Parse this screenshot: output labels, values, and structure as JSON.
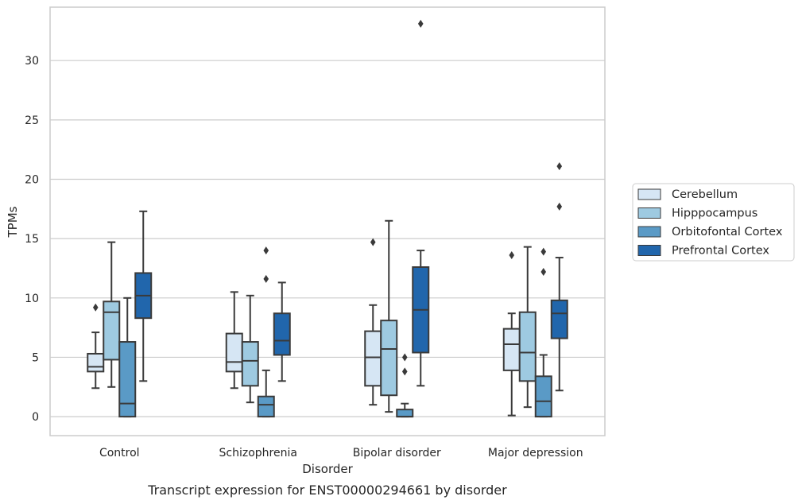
{
  "chart_data": {
    "type": "boxplot",
    "title": "Transcript expression for ENST00000294661 by disorder",
    "xlabel": "Disorder",
    "ylabel": "TPMs",
    "ylim": [
      -1.6,
      34.5
    ],
    "yticks": [
      "0",
      "5",
      "10",
      "15",
      "20",
      "25",
      "30"
    ],
    "grid": true,
    "legend_position": "right",
    "categories": [
      "Control",
      "Schizophrenia",
      "Bipolar disorder",
      "Major depression"
    ],
    "series": [
      {
        "name": "Cerebellum",
        "color": "#d6e6f4",
        "boxes": [
          {
            "q1": 3.8,
            "median": 4.2,
            "q3": 5.3,
            "whisker_low": 2.4,
            "whisker_high": 7.1,
            "outliers": [
              9.2
            ]
          },
          {
            "q1": 3.8,
            "median": 4.6,
            "q3": 7.0,
            "whisker_low": 2.4,
            "whisker_high": 10.5,
            "outliers": []
          },
          {
            "q1": 2.6,
            "median": 5.0,
            "q3": 7.2,
            "whisker_low": 1.0,
            "whisker_high": 9.4,
            "outliers": [
              14.7
            ]
          },
          {
            "q1": 3.9,
            "median": 6.1,
            "q3": 7.4,
            "whisker_low": 0.1,
            "whisker_high": 8.7,
            "outliers": [
              13.6
            ]
          }
        ]
      },
      {
        "name": "Hipppocampus",
        "color": "#9ecae1",
        "boxes": [
          {
            "q1": 4.8,
            "median": 8.8,
            "q3": 9.7,
            "whisker_low": 2.5,
            "whisker_high": 14.7,
            "outliers": []
          },
          {
            "q1": 2.6,
            "median": 4.7,
            "q3": 6.3,
            "whisker_low": 1.2,
            "whisker_high": 10.2,
            "outliers": []
          },
          {
            "q1": 1.8,
            "median": 5.7,
            "q3": 8.1,
            "whisker_low": 0.4,
            "whisker_high": 16.5,
            "outliers": []
          },
          {
            "q1": 3.0,
            "median": 5.4,
            "q3": 8.8,
            "whisker_low": 0.8,
            "whisker_high": 14.3,
            "outliers": []
          }
        ]
      },
      {
        "name": "Orbitofontal Cortex",
        "color": "#5a9ac6",
        "boxes": [
          {
            "q1": 0.0,
            "median": 1.1,
            "q3": 6.3,
            "whisker_low": 0.0,
            "whisker_high": 10.0,
            "outliers": []
          },
          {
            "q1": 0.0,
            "median": 1.0,
            "q3": 1.7,
            "whisker_low": 0.0,
            "whisker_high": 3.9,
            "outliers": [
              11.6,
              14.0
            ]
          },
          {
            "q1": 0.0,
            "median": 0.0,
            "q3": 0.6,
            "whisker_low": 0.0,
            "whisker_high": 1.1,
            "outliers": [
              3.8,
              5.0
            ]
          },
          {
            "q1": 0.0,
            "median": 1.3,
            "q3": 3.4,
            "whisker_low": 0.0,
            "whisker_high": 5.2,
            "outliers": [
              12.2,
              13.9
            ]
          }
        ]
      },
      {
        "name": "Prefrontal Cortex",
        "color": "#2166ac",
        "boxes": [
          {
            "q1": 8.3,
            "median": 10.2,
            "q3": 12.1,
            "whisker_low": 3.0,
            "whisker_high": 17.3,
            "outliers": []
          },
          {
            "q1": 5.2,
            "median": 6.4,
            "q3": 8.7,
            "whisker_low": 3.0,
            "whisker_high": 11.3,
            "outliers": []
          },
          {
            "q1": 5.4,
            "median": 9.0,
            "q3": 12.6,
            "whisker_low": 2.6,
            "whisker_high": 14.0,
            "outliers": [
              33.1
            ]
          },
          {
            "q1": 6.6,
            "median": 8.7,
            "q3": 9.8,
            "whisker_low": 2.2,
            "whisker_high": 13.4,
            "outliers": [
              17.7,
              21.1
            ]
          }
        ]
      }
    ]
  }
}
